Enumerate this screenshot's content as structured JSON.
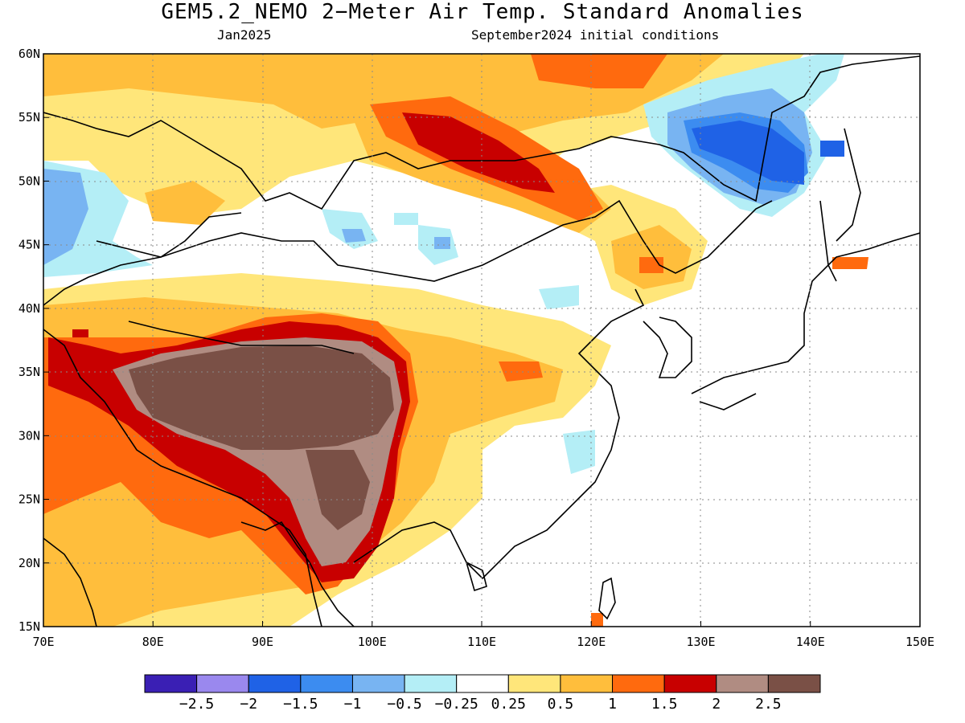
{
  "title": "GEM5.2_NEMO 2−Meter Air Temp. Standard Anomalies",
  "valid_month": "Jan2025",
  "init_conditions": "September2024 initial conditions",
  "map": {
    "lon_range": [
      70,
      150
    ],
    "lat_range": [
      15,
      60
    ],
    "lon_ticks": [
      "70E",
      "80E",
      "90E",
      "100E",
      "110E",
      "120E",
      "130E",
      "140E",
      "150E"
    ],
    "lat_ticks": [
      "60N",
      "55N",
      "50N",
      "45N",
      "40N",
      "35N",
      "30N",
      "25N",
      "20N",
      "15N"
    ],
    "grid": "dotted",
    "anomaly_regions": [
      {
        "name": "tibetan-plateau",
        "class": "gt-2.5"
      },
      {
        "name": "lake-baikal-region",
        "class": "1.5-2"
      },
      {
        "name": "northeast-china-russia-coast",
        "class": "-1.5 to -1"
      },
      {
        "name": "northwest-kazakhstan",
        "class": "-1 to -0.5"
      },
      {
        "name": "central-mongolia",
        "class": "-0.5 to -0.25"
      }
    ]
  },
  "colorbar": {
    "colors": [
      "#3a1fb4",
      "#9a88ee",
      "#1f62e6",
      "#3c8cf0",
      "#78b4f2",
      "#b4eef6",
      "#ffffff",
      "#ffe67a",
      "#ffbe3c",
      "#ff6a0e",
      "#c80000",
      "#b08c82",
      "#7a5046"
    ],
    "labels": [
      "−2.5",
      "−2",
      "−1.5",
      "−1",
      "−0.5",
      "−0.25",
      "0.25",
      "0.5",
      "1",
      "1.5",
      "2",
      "2.5"
    ]
  }
}
